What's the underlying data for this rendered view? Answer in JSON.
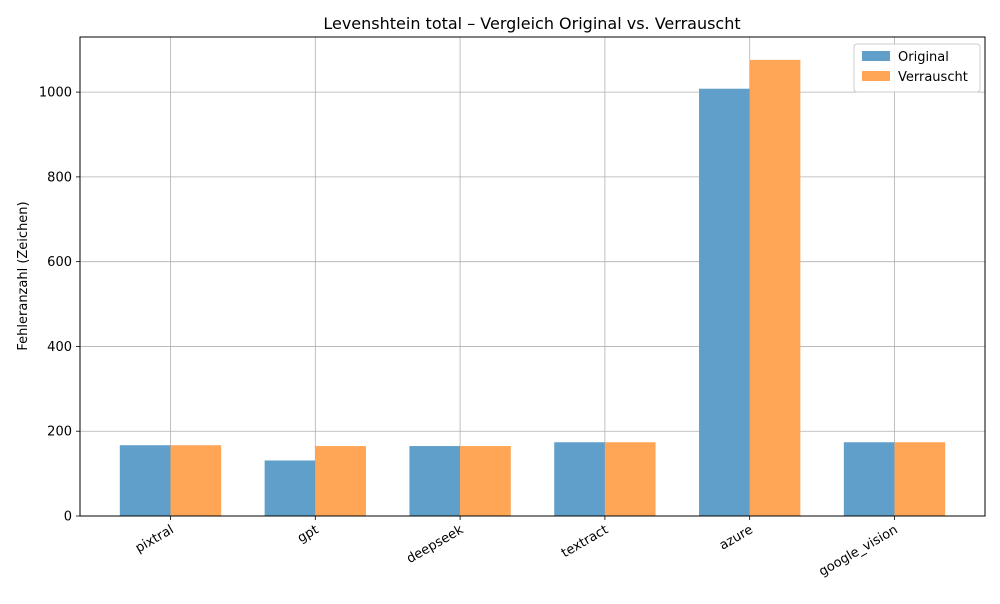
{
  "chart_data": {
    "type": "bar",
    "title": "Levenshtein total – Vergleich Original vs. Verrauscht",
    "xlabel": "",
    "ylabel": "Fehleranzahl (Zeichen)",
    "categories": [
      "pixtral",
      "gpt",
      "deepseek",
      "textract",
      "azure",
      "google_vision"
    ],
    "series": [
      {
        "name": "Original",
        "color": "#619fcb",
        "values": [
          167,
          131,
          165,
          174,
          1008,
          174
        ]
      },
      {
        "name": "Verrauscht",
        "color": "#ffa656",
        "values": [
          167,
          165,
          165,
          174,
          1076,
          174
        ]
      }
    ],
    "ylim": [
      0,
      1130
    ],
    "yticks": [
      0,
      200,
      400,
      600,
      800,
      1000
    ],
    "grid": true,
    "legend_position": "top-right"
  }
}
